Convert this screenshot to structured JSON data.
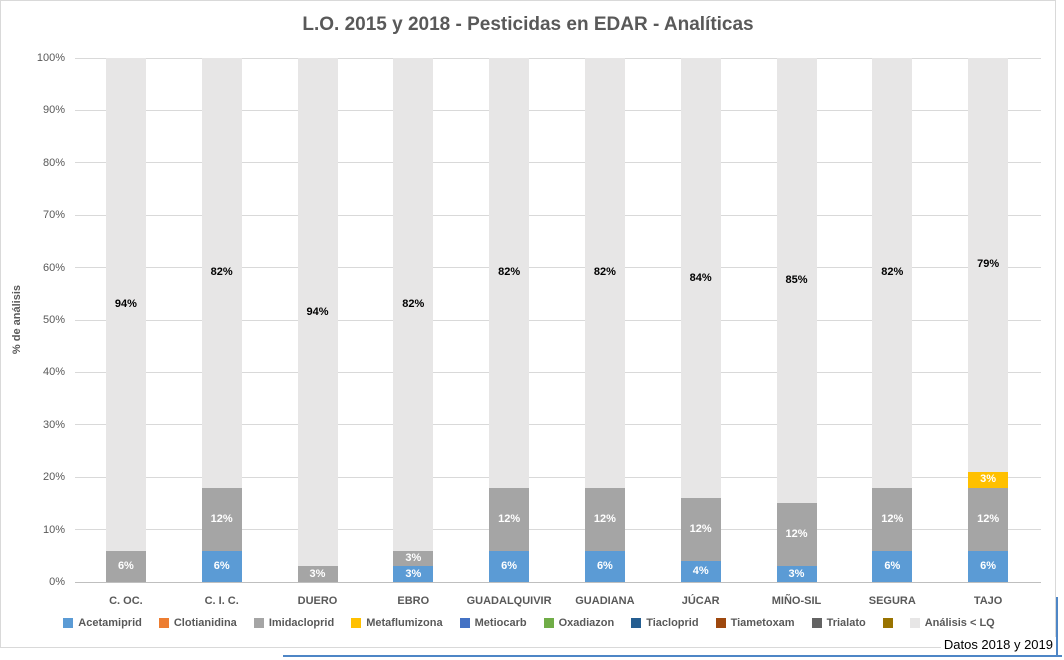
{
  "frame": {
    "note_text": "Datos 2018 y 2019",
    "border_color": "#4E86C6"
  },
  "chart_data": {
    "type": "bar",
    "subtype": "stacked-100",
    "title": "L.O. 2015 y 2018 - Pesticidas en EDAR - Analíticas",
    "xlabel": "",
    "ylabel": "% de análisis",
    "ylim": [
      0,
      100
    ],
    "y_tick_step": 10,
    "y_tick_labels": [
      "0%",
      "10%",
      "20%",
      "30%",
      "40%",
      "50%",
      "60%",
      "70%",
      "80%",
      "90%",
      "100%"
    ],
    "grid": true,
    "legend_position": "bottom",
    "categories": [
      "C. OC.",
      "C. I. C.",
      "DUERO",
      "EBRO",
      "GUADALQUIVIR",
      "GUADIANA",
      "JÚCAR",
      "MIÑO-SIL",
      "SEGURA",
      "TAJO"
    ],
    "series": [
      {
        "name": "Acetamiprid",
        "color": "#5B9BD5",
        "values": [
          0,
          6,
          0,
          3,
          6,
          6,
          4,
          3,
          6,
          6
        ]
      },
      {
        "name": "Clotianidina",
        "color": "#ED7D31",
        "values": [
          0,
          0,
          0,
          0,
          0,
          0,
          0,
          0,
          0,
          0
        ]
      },
      {
        "name": "Imidacloprid",
        "color": "#A5A5A5",
        "values": [
          6,
          12,
          3,
          3,
          12,
          12,
          12,
          12,
          12,
          12
        ]
      },
      {
        "name": "Metaflumizona",
        "color": "#FFC000",
        "values": [
          0,
          0,
          0,
          0,
          0,
          0,
          0,
          0,
          0,
          3
        ]
      },
      {
        "name": "Metiocarb",
        "color": "#4472C4",
        "values": [
          0,
          0,
          0,
          0,
          0,
          0,
          0,
          0,
          0,
          0
        ]
      },
      {
        "name": "Oxadiazon",
        "color": "#70AD47",
        "values": [
          0,
          0,
          0,
          0,
          0,
          0,
          0,
          0,
          0,
          0
        ]
      },
      {
        "name": "Tiacloprid",
        "color": "#255E91",
        "values": [
          0,
          0,
          0,
          0,
          0,
          0,
          0,
          0,
          0,
          0
        ]
      },
      {
        "name": "Tiametoxam",
        "color": "#9E480E",
        "values": [
          0,
          0,
          0,
          0,
          0,
          0,
          0,
          0,
          0,
          0
        ]
      },
      {
        "name": "Trialato",
        "color": "#636363",
        "values": [
          0,
          0,
          0,
          0,
          0,
          0,
          0,
          0,
          0,
          0
        ]
      },
      {
        "name": "",
        "color": "#997300",
        "values": [
          0,
          0,
          0,
          0,
          0,
          0,
          0,
          0,
          0,
          0
        ]
      },
      {
        "name": "Análisis < LQ",
        "color": "#E7E6E6",
        "fill_to_top": true,
        "values": [
          94,
          82,
          94,
          82,
          82,
          82,
          84,
          85,
          82,
          79
        ]
      }
    ]
  }
}
